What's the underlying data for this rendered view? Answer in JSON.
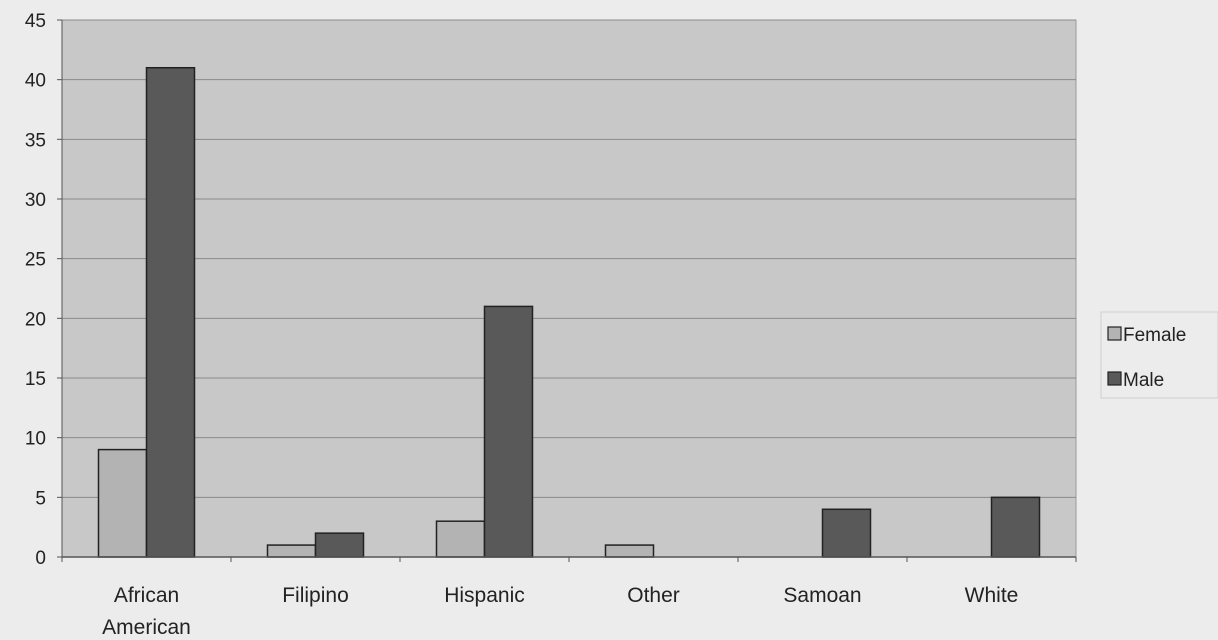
{
  "chart_data": {
    "type": "bar",
    "categories": [
      [
        "African",
        "American"
      ],
      [
        "Filipino"
      ],
      [
        "Hispanic"
      ],
      [
        "Other"
      ],
      [
        "Samoan"
      ],
      [
        "White"
      ]
    ],
    "series": [
      {
        "name": "Female",
        "values": [
          9,
          1,
          3,
          1,
          0,
          0
        ],
        "color": "#b3b3b3"
      },
      {
        "name": "Male",
        "values": [
          41,
          2,
          21,
          0,
          4,
          5
        ],
        "color": "#595959"
      }
    ],
    "title": "",
    "xlabel": "",
    "ylabel": "",
    "ylim": [
      0,
      45
    ],
    "yticks": [
      0,
      5,
      10,
      15,
      20,
      25,
      30,
      35,
      40,
      45
    ],
    "grid": true,
    "legend_position": "right",
    "plot_background": "#c8c8c8"
  }
}
